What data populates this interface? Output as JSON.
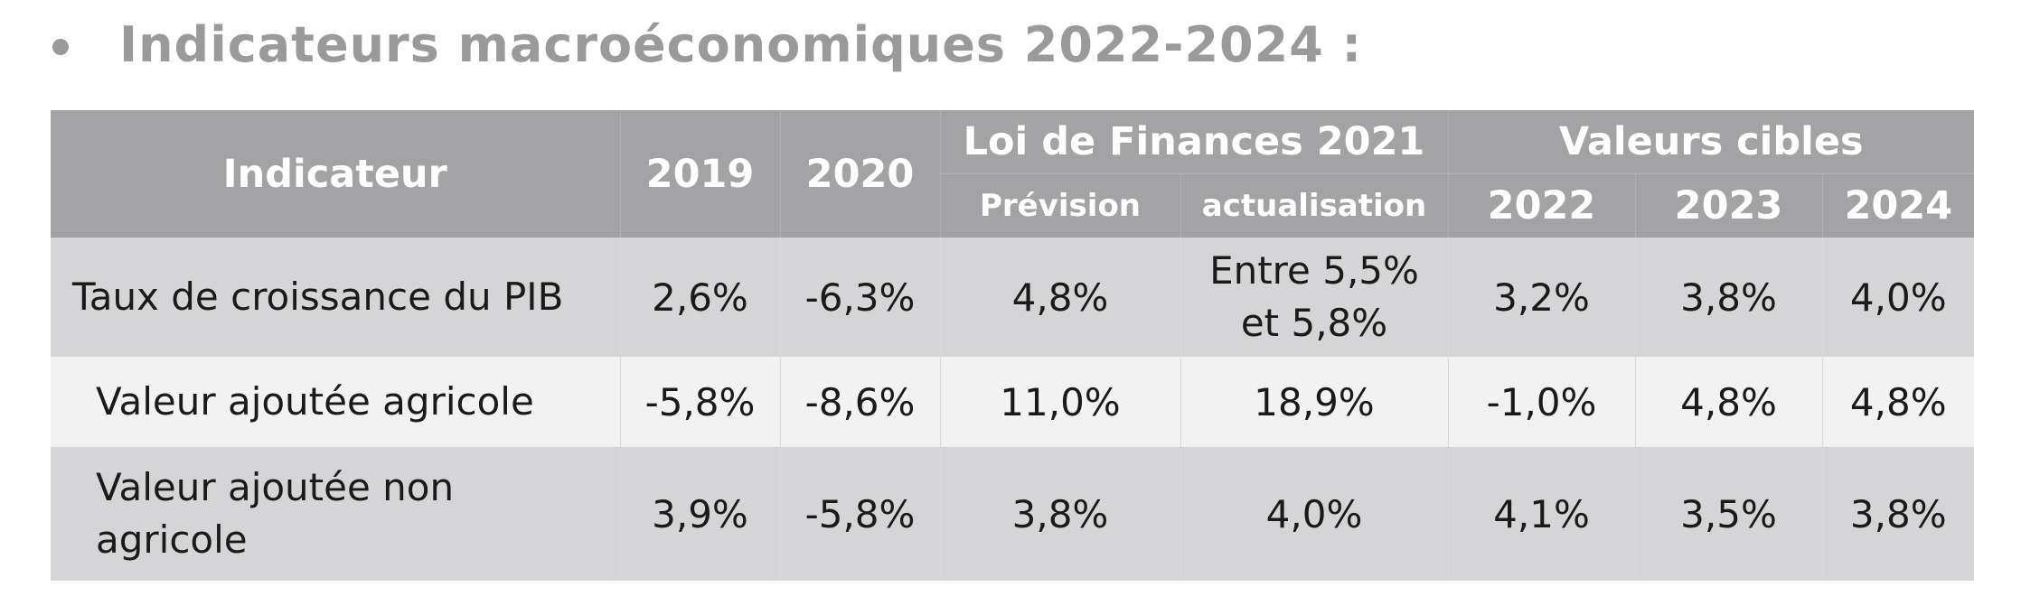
{
  "heading": {
    "bullet_icon": "bullet-dot",
    "title": "Indicateurs macroéconomiques 2022-2024 :"
  },
  "table": {
    "header": {
      "indicator": "Indicateur",
      "y2019": "2019",
      "y2020": "2020",
      "lf2021": "Loi de Finances 2021",
      "lf2021_prevision": "Prévision",
      "lf2021_actualisation": "actualisation",
      "targets": "Valeurs cibles",
      "t2022": "2022",
      "t2023": "2023",
      "t2024": "2024"
    },
    "rows": [
      {
        "label": "Taux de croissance du PIB",
        "y2019": "2,6%",
        "y2020": "-6,3%",
        "prevision": "4,8%",
        "actualisation_line1": "Entre 5,5%",
        "actualisation_line2": "et 5,8%",
        "t2022": "3,2%",
        "t2023": "3,8%",
        "t2024": "4,0%"
      },
      {
        "label": "Valeur ajoutée agricole",
        "y2019": "-5,8%",
        "y2020": "-8,6%",
        "prevision": "11,0%",
        "actualisation": "18,9%",
        "t2022": "-1,0%",
        "t2023": "4,8%",
        "t2024": "4,8%"
      },
      {
        "label_line1": "Valeur ajoutée non",
        "label_line2": "agricole",
        "y2019": "3,9%",
        "y2020": "-5,8%",
        "prevision": "3,8%",
        "actualisation": "4,0%",
        "t2022": "4,1%",
        "t2023": "3,5%",
        "t2024": "3,8%"
      }
    ]
  },
  "colors": {
    "heading": "#9a9a9c",
    "header_bg": "#a3a3a5",
    "row_dark": "#d5d5d7",
    "row_light": "#f2f2f3"
  }
}
